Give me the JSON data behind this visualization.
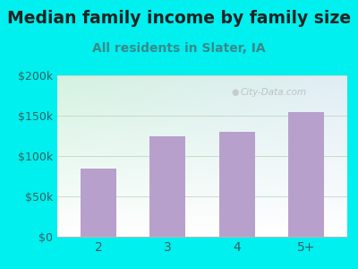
{
  "title": "Median family income by family size",
  "subtitle": "All residents in Slater, IA",
  "categories": [
    "2",
    "3",
    "4",
    "5+"
  ],
  "values": [
    85000,
    125000,
    130000,
    155000
  ],
  "bar_color": "#b8a0cc",
  "background_outer": "#00efef",
  "background_inner_topleft": "#dff0dd",
  "background_inner_bottomright": "#d0eef0",
  "title_color": "#222222",
  "subtitle_color": "#3a8a8a",
  "tick_color": "#3a6060",
  "ylim": [
    0,
    200000
  ],
  "yticks": [
    0,
    50000,
    100000,
    150000,
    200000
  ],
  "ytick_labels": [
    "$0",
    "$50k",
    "$100k",
    "$150k",
    "$200k"
  ],
  "title_fontsize": 13.5,
  "subtitle_fontsize": 10,
  "watermark": "City-Data.com"
}
